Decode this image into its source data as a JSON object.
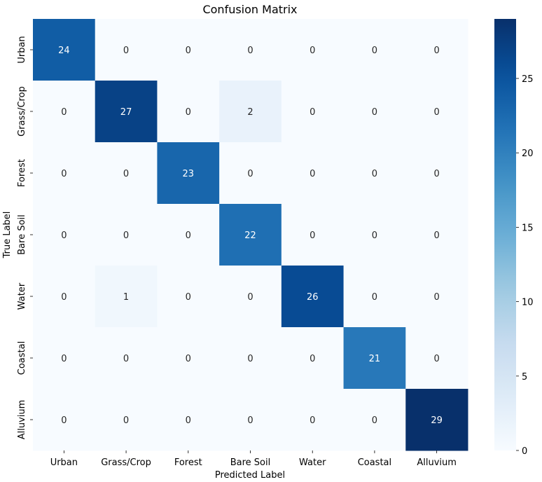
{
  "chart_data": {
    "type": "heatmap",
    "title": "Confusion Matrix",
    "xlabel": "Predicted Label",
    "ylabel": "True Label",
    "x_categories": [
      "Urban",
      "Grass/Crop",
      "Forest",
      "Bare Soil",
      "Water",
      "Coastal",
      "Alluvium"
    ],
    "y_categories": [
      "Urban",
      "Grass/Crop",
      "Forest",
      "Bare Soil",
      "Water",
      "Coastal",
      "Alluvium"
    ],
    "values": [
      [
        24,
        0,
        0,
        0,
        0,
        0,
        0
      ],
      [
        0,
        27,
        0,
        2,
        0,
        0,
        0
      ],
      [
        0,
        0,
        23,
        0,
        0,
        0,
        0
      ],
      [
        0,
        0,
        0,
        22,
        0,
        0,
        0
      ],
      [
        0,
        1,
        0,
        0,
        26,
        0,
        0
      ],
      [
        0,
        0,
        0,
        0,
        0,
        21,
        0
      ],
      [
        0,
        0,
        0,
        0,
        0,
        0,
        29
      ]
    ],
    "colormap": "Blues",
    "colorbar": {
      "range": [
        0,
        29
      ],
      "ticks": [
        0,
        5,
        10,
        15,
        20,
        25
      ]
    },
    "annotations": true,
    "grid": false
  }
}
